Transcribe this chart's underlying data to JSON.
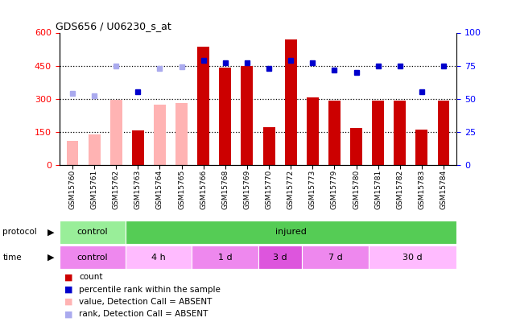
{
  "title": "GDS656 / U06230_s_at",
  "samples": [
    "GSM15760",
    "GSM15761",
    "GSM15762",
    "GSM15763",
    "GSM15764",
    "GSM15765",
    "GSM15766",
    "GSM15768",
    "GSM15769",
    "GSM15770",
    "GSM15772",
    "GSM15773",
    "GSM15779",
    "GSM15780",
    "GSM15781",
    "GSM15782",
    "GSM15783",
    "GSM15784"
  ],
  "count_values": [
    null,
    null,
    null,
    155,
    null,
    null,
    535,
    440,
    447,
    172,
    570,
    307,
    291,
    167,
    291,
    291,
    160,
    292
  ],
  "count_absent": [
    110,
    138,
    295,
    null,
    272,
    280,
    null,
    null,
    null,
    null,
    null,
    null,
    null,
    null,
    null,
    null,
    null,
    null
  ],
  "rank_values": [
    null,
    null,
    null,
    55,
    null,
    null,
    79,
    77,
    77,
    73,
    79,
    77,
    72,
    70,
    75,
    75,
    55,
    75
  ],
  "rank_absent": [
    54,
    52,
    75,
    null,
    73,
    74,
    null,
    null,
    null,
    null,
    null,
    null,
    null,
    null,
    null,
    null,
    null,
    null
  ],
  "ylim_left": [
    0,
    600
  ],
  "ylim_right": [
    0,
    100
  ],
  "yticks_left": [
    0,
    150,
    300,
    450,
    600
  ],
  "yticks_right": [
    0,
    25,
    50,
    75,
    100
  ],
  "bar_color": "#cc0000",
  "bar_absent_color": "#ffb3b3",
  "rank_color": "#0000cc",
  "rank_absent_color": "#aaaaee",
  "protocol_groups": [
    {
      "label": "control",
      "start": 0,
      "end": 3,
      "color": "#99ee99"
    },
    {
      "label": "injured",
      "start": 3,
      "end": 18,
      "color": "#55cc55"
    }
  ],
  "time_groups": [
    {
      "label": "control",
      "start": 0,
      "end": 3,
      "color": "#ee88ee"
    },
    {
      "label": "4 h",
      "start": 3,
      "end": 6,
      "color": "#ffbbff"
    },
    {
      "label": "1 d",
      "start": 6,
      "end": 9,
      "color": "#ee88ee"
    },
    {
      "label": "3 d",
      "start": 9,
      "end": 11,
      "color": "#dd55dd"
    },
    {
      "label": "7 d",
      "start": 11,
      "end": 14,
      "color": "#ee88ee"
    },
    {
      "label": "30 d",
      "start": 14,
      "end": 18,
      "color": "#ffbbff"
    }
  ],
  "legend_items": [
    {
      "label": "count",
      "color": "#cc0000"
    },
    {
      "label": "percentile rank within the sample",
      "color": "#0000cc"
    },
    {
      "label": "value, Detection Call = ABSENT",
      "color": "#ffb3b3"
    },
    {
      "label": "rank, Detection Call = ABSENT",
      "color": "#aaaaee"
    }
  ],
  "bar_width": 0.55,
  "bg_color": "#ffffff",
  "chart_facecolor": "#ffffff"
}
